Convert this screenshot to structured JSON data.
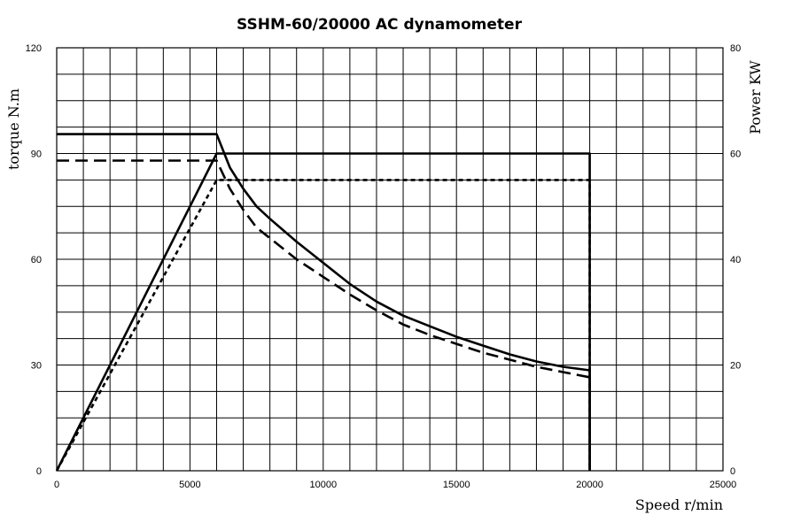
{
  "chart_data": {
    "type": "line",
    "title": "SSHM-60/20000 AC dynamometer",
    "xlabel": "Speed r/min",
    "ylabel_left": "torque N.m",
    "ylabel_right": "Power KW",
    "xlim": [
      0,
      25000
    ],
    "ylim_left": [
      0,
      120
    ],
    "ylim_right": [
      0,
      80
    ],
    "x_ticks": [
      "0",
      "5000",
      "10000",
      "15000",
      "20000",
      "25000"
    ],
    "y_left_ticks": [
      "0",
      "30",
      "60",
      "90",
      "120"
    ],
    "y_right_ticks": [
      "0",
      "20",
      "40",
      "60",
      "80"
    ],
    "grid": true,
    "series": [
      {
        "axis": "left",
        "style": "solid",
        "x": [
          0,
          6000,
          6500,
          7000,
          7500,
          8000,
          9000,
          10000,
          11000,
          12000,
          13000,
          14000,
          15000,
          16000,
          17000,
          18000,
          19000,
          20000,
          20000
        ],
        "y": [
          95.5,
          95.5,
          86,
          80,
          75,
          71.5,
          65,
          59,
          53,
          48,
          44,
          41,
          38,
          35.5,
          33,
          31,
          29.5,
          28.5,
          0
        ]
      },
      {
        "axis": "left",
        "style": "dashed",
        "x": [
          0,
          6000,
          6500,
          7000,
          7500,
          8000,
          9000,
          10000,
          11000,
          12000,
          13000,
          14000,
          15000,
          16000,
          17000,
          18000,
          19000,
          20000
        ],
        "y": [
          88,
          88,
          80,
          74,
          69,
          66,
          60,
          55,
          50,
          45.5,
          41.5,
          38.5,
          36,
          33.5,
          31.5,
          29.5,
          28,
          26.5
        ]
      },
      {
        "axis": "right",
        "style": "solid",
        "x": [
          0,
          6000,
          20000,
          20000
        ],
        "y": [
          0,
          60,
          60,
          0
        ]
      },
      {
        "axis": "right",
        "style": "short-dashed",
        "x": [
          0,
          6000,
          20000,
          20000
        ],
        "y": [
          0,
          55,
          55,
          0
        ]
      }
    ]
  }
}
